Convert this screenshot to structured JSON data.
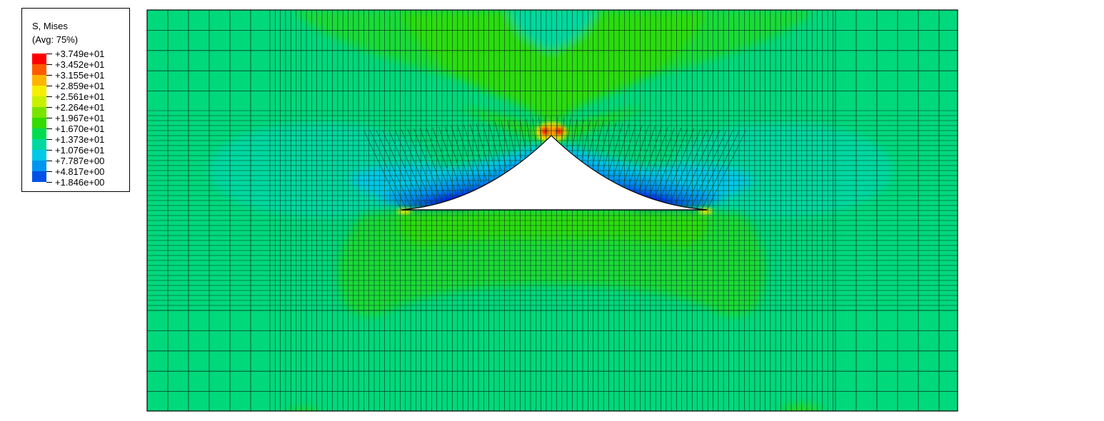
{
  "legend": {
    "title": "S, Mises",
    "subtitle": "(Avg: 75%)",
    "levels": [
      "+3.749e+01",
      "+3.452e+01",
      "+3.155e+01",
      "+2.859e+01",
      "+2.561e+01",
      "+2.264e+01",
      "+1.967e+01",
      "+1.670e+01",
      "+1.373e+01",
      "+1.076e+01",
      "+7.787e+00",
      "+4.817e+00",
      "+1.846e+00"
    ],
    "colors": [
      "#ff0000",
      "#ff5a00",
      "#ffb400",
      "#f6ee00",
      "#c8f000",
      "#78e400",
      "#32dc00",
      "#00dc50",
      "#00d8a0",
      "#00c8e8",
      "#0096f0",
      "#0050e6",
      "#0000e6"
    ]
  },
  "contour": {
    "background": "#00d87c",
    "mesh_line": "#0a3a22"
  }
}
